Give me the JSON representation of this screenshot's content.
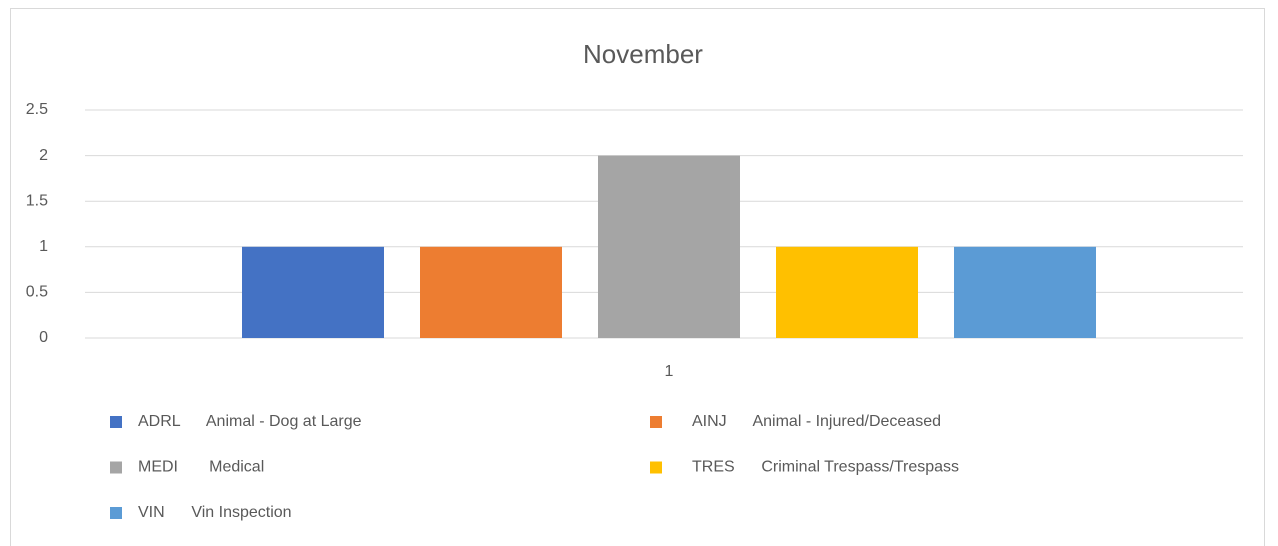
{
  "chart_data": {
    "type": "bar",
    "title": "November",
    "categories": [
      "1"
    ],
    "series": [
      {
        "name": "ADRL      Animal - Dog at Large",
        "color": "#4472c4",
        "values": [
          1
        ]
      },
      {
        "name": "AINJ      Animal - Injured/Deceased",
        "color": "#ed7d31",
        "values": [
          1
        ]
      },
      {
        "name": "MEDI       Medical",
        "color": "#a5a5a5",
        "values": [
          2
        ]
      },
      {
        "name": "TRES      Criminal Trespass/Trespass",
        "color": "#ffc000",
        "values": [
          1
        ]
      },
      {
        "name": "VIN      Vin Inspection",
        "color": "#5b9bd5",
        "values": [
          1
        ]
      }
    ],
    "ylim": [
      0,
      2.5
    ],
    "yticks": [
      0,
      0.5,
      1,
      1.5,
      2,
      2.5
    ],
    "grid": true,
    "legend": "bottom"
  }
}
